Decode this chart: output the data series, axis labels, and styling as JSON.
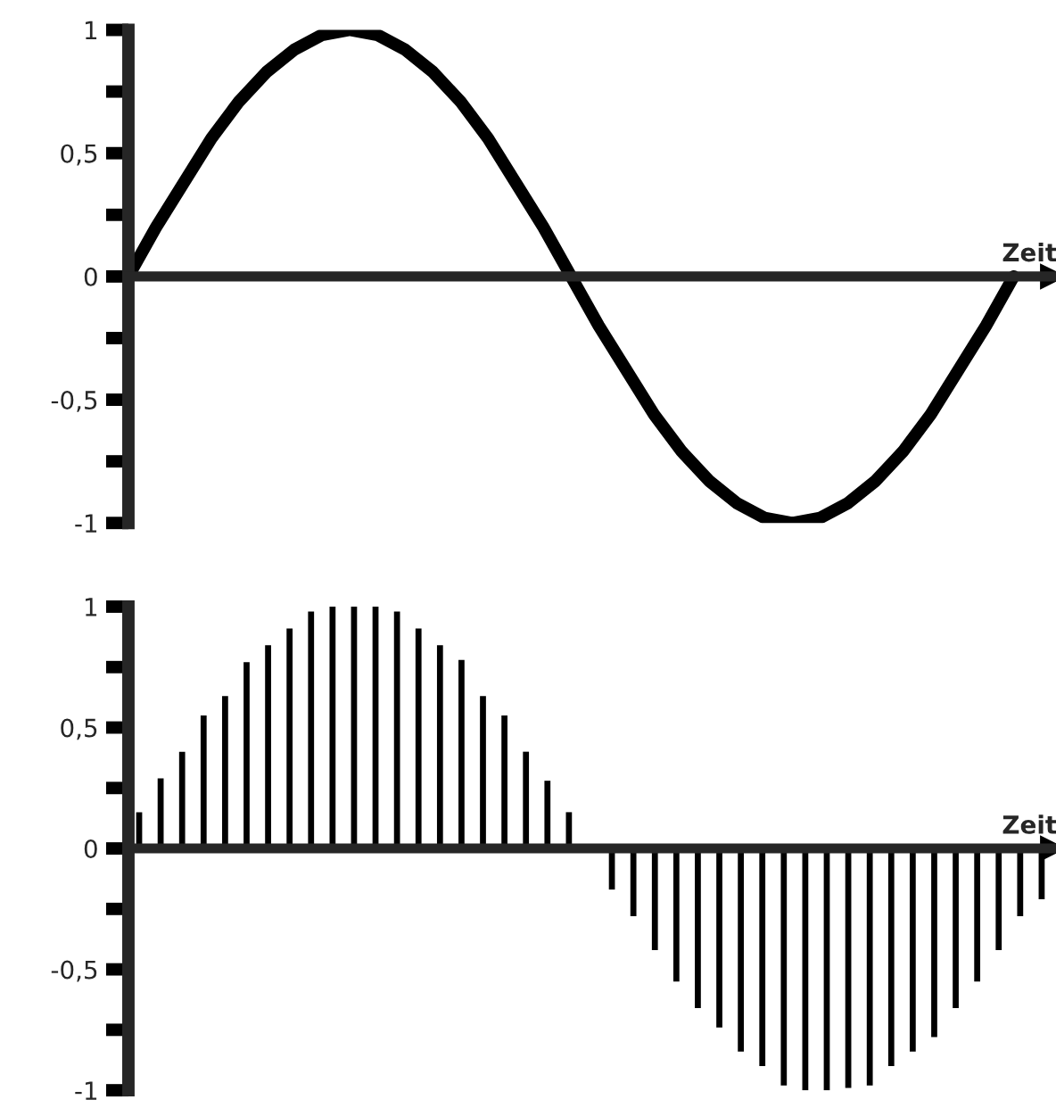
{
  "chart_data": [
    {
      "type": "line",
      "xlabel": "Zeit",
      "tick_labels": "y",
      "color": "#000000",
      "categories": [
        null,
        null,
        null,
        null,
        null,
        null,
        null,
        null,
        null,
        null,
        null,
        null,
        null,
        null,
        null,
        null,
        null,
        null,
        null,
        null,
        null,
        null,
        null,
        null,
        null,
        null,
        null,
        null,
        null,
        null,
        null,
        null,
        null
      ],
      "values": [
        0,
        0.2,
        0.38,
        0.56,
        0.71,
        0.83,
        0.92,
        0.98,
        1,
        0.98,
        0.92,
        0.83,
        0.71,
        0.56,
        0.38,
        0.2,
        0,
        -0.2,
        -0.38,
        -0.56,
        -0.71,
        -0.83,
        -0.92,
        -0.98,
        -1,
        -0.98,
        -0.92,
        -0.83,
        -0.71,
        -0.56,
        -0.38,
        -0.2,
        0
      ],
      "ylim": [
        -1,
        1
      ],
      "yticks": [
        {
          "value": -1,
          "label": "-1"
        },
        {
          "value": -0.75,
          "label": null
        },
        {
          "value": -0.5,
          "label": "-0,5"
        },
        {
          "value": -0.25,
          "label": null
        },
        0,
        {
          "value": 0.25,
          "label": null
        },
        {
          "value": 0.5,
          "label": "0,5"
        },
        {
          "value": 0.75,
          "label": null
        },
        1
      ]
    },
    {
      "type": "bar",
      "xlabel": "Zeit",
      "tick_labels": "y",
      "color": "#000000",
      "categories": [
        null,
        null,
        null,
        null,
        null,
        null,
        null,
        null,
        null,
        null,
        null,
        null,
        null,
        null,
        null,
        null,
        null,
        null,
        null,
        null,
        null,
        null,
        null,
        null,
        null,
        null,
        null,
        null,
        null,
        null,
        null,
        null,
        null,
        null,
        null,
        null,
        null,
        null,
        null,
        null,
        null,
        null,
        null
      ],
      "values": [
        0.15,
        0.29,
        0.4,
        0.55,
        0.63,
        0.77,
        0.84,
        0.91,
        0.98,
        1,
        1,
        1,
        0.98,
        0.91,
        0.84,
        0.78,
        0.63,
        0.55,
        0.4,
        0.28,
        0.15,
        0,
        -0.17,
        -0.28,
        -0.42,
        -0.55,
        -0.66,
        -0.74,
        -0.84,
        -0.9,
        -0.98,
        -1,
        -1,
        -0.99,
        -0.98,
        -0.9,
        -0.84,
        -0.78,
        -0.66,
        -0.55,
        -0.42,
        -0.28,
        -0.21
      ],
      "ylim": [
        -1,
        1
      ],
      "yticks": [
        {
          "value": -1,
          "label": "-1"
        },
        {
          "value": -0.75,
          "label": null
        },
        {
          "value": -0.5,
          "label": "-0,5"
        },
        {
          "value": -0.25,
          "label": null
        },
        0,
        {
          "value": 0.25,
          "label": null
        },
        {
          "value": 0.5,
          "label": "0,5"
        },
        {
          "value": 0.75,
          "label": null
        },
        1
      ]
    }
  ]
}
